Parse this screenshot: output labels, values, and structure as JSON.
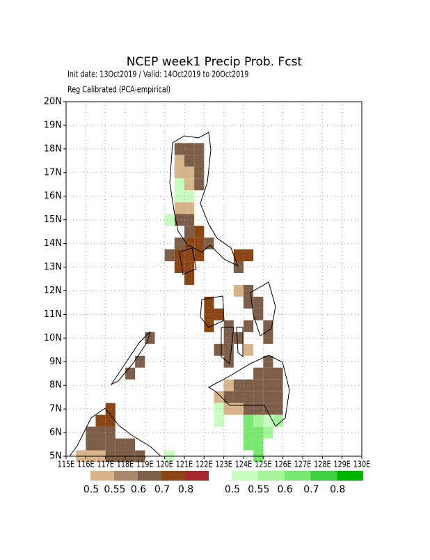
{
  "map": {
    "title": "NCEP week1 Precip Prob. Fcst",
    "subtitle": "Init date: 13Oct2019 / Valid: 14Oct2019 to 20Oct2019",
    "method": "Reg Calibrated (PCA-empirical)",
    "xlim": [
      115,
      130
    ],
    "ylim": [
      5,
      20
    ],
    "xticks": [
      {
        "value": 115,
        "label": "115E"
      },
      {
        "value": 116,
        "label": "116E"
      },
      {
        "value": 117,
        "label": "117E"
      },
      {
        "value": 118,
        "label": "118E"
      },
      {
        "value": 119,
        "label": "119E"
      },
      {
        "value": 120,
        "label": "120E"
      },
      {
        "value": 121,
        "label": "121E"
      },
      {
        "value": 122,
        "label": "122E"
      },
      {
        "value": 123,
        "label": "123E"
      },
      {
        "value": 124,
        "label": "124E"
      },
      {
        "value": 125,
        "label": "125E"
      },
      {
        "value": 126,
        "label": "126E"
      },
      {
        "value": 127,
        "label": "127E"
      },
      {
        "value": 128,
        "label": "128E"
      },
      {
        "value": 129,
        "label": "129E"
      },
      {
        "value": 130,
        "label": "130E"
      }
    ],
    "yticks": [
      {
        "value": 5,
        "label": "5N"
      },
      {
        "value": 6,
        "label": "6N"
      },
      {
        "value": 7,
        "label": "7N"
      },
      {
        "value": 8,
        "label": "8N"
      },
      {
        "value": 9,
        "label": "9N"
      },
      {
        "value": 10,
        "label": "10N"
      },
      {
        "value": 11,
        "label": "11N"
      },
      {
        "value": 12,
        "label": "12N"
      },
      {
        "value": 13,
        "label": "13N"
      },
      {
        "value": 14,
        "label": "14N"
      },
      {
        "value": 15,
        "label": "15N"
      },
      {
        "value": 16,
        "label": "16N"
      },
      {
        "value": 17,
        "label": "17N"
      },
      {
        "value": 18,
        "label": "18N"
      },
      {
        "value": 19,
        "label": "19N"
      },
      {
        "value": 20,
        "label": "20N"
      }
    ],
    "grid": true,
    "legend": {
      "below": {
        "labels": [
          0.5,
          0.55,
          0.6,
          0.7,
          0.8
        ],
        "colors": [
          "#d7b48a",
          "#a8876c",
          "#7d5e48",
          "#8a4614",
          "#a3292b"
        ]
      },
      "above": {
        "labels": [
          0.5,
          0.55,
          0.6,
          0.7,
          0.8
        ],
        "colors": [
          "#c8ffc0",
          "#a4f59a",
          "#78e870",
          "#40d040",
          "#00b400"
        ]
      }
    },
    "below_cells": [
      [
        120.75,
        18.0,
        0.65
      ],
      [
        121.25,
        18.0,
        0.65
      ],
      [
        121.75,
        18.0,
        0.65
      ],
      [
        120.75,
        17.5,
        0.52
      ],
      [
        121.25,
        17.5,
        0.65
      ],
      [
        121.75,
        17.5,
        0.65
      ],
      [
        120.75,
        17.0,
        0.52
      ],
      [
        121.25,
        17.0,
        0.52
      ],
      [
        121.75,
        17.0,
        0.65
      ],
      [
        121.25,
        16.5,
        0.52
      ],
      [
        121.75,
        16.5,
        0.65
      ],
      [
        120.75,
        15.5,
        0.52
      ],
      [
        121.25,
        15.5,
        0.52
      ],
      [
        120.75,
        15.0,
        0.65
      ],
      [
        121.25,
        15.0,
        0.65
      ],
      [
        121.25,
        14.5,
        0.65
      ],
      [
        121.75,
        14.5,
        0.75
      ],
      [
        120.75,
        14.0,
        0.65
      ],
      [
        121.25,
        14.0,
        0.75
      ],
      [
        121.75,
        14.0,
        0.75
      ],
      [
        122.25,
        14.0,
        0.65
      ],
      [
        120.25,
        13.5,
        0.65
      ],
      [
        120.75,
        13.5,
        0.75
      ],
      [
        121.25,
        13.5,
        0.75
      ],
      [
        121.75,
        13.5,
        0.75
      ],
      [
        120.75,
        13.0,
        0.75
      ],
      [
        121.25,
        13.0,
        0.75
      ],
      [
        121.25,
        12.5,
        0.75
      ],
      [
        123.75,
        13.5,
        0.75
      ],
      [
        124.25,
        13.5,
        0.75
      ],
      [
        123.75,
        13.0,
        0.65
      ],
      [
        123.75,
        12.0,
        0.52
      ],
      [
        124.25,
        12.0,
        0.65
      ],
      [
        124.25,
        11.5,
        0.65
      ],
      [
        124.75,
        11.5,
        0.65
      ],
      [
        122.25,
        11.5,
        0.75
      ],
      [
        122.25,
        11.0,
        0.75
      ],
      [
        122.75,
        11.0,
        0.75
      ],
      [
        122.25,
        10.5,
        0.75
      ],
      [
        123.25,
        10.5,
        0.65
      ],
      [
        123.25,
        10.0,
        0.65
      ],
      [
        123.75,
        10.0,
        0.65
      ],
      [
        124.25,
        10.5,
        0.65
      ],
      [
        122.75,
        9.5,
        0.65
      ],
      [
        123.25,
        9.5,
        0.65
      ],
      [
        124.25,
        9.5,
        0.52
      ],
      [
        123.25,
        9.0,
        0.65
      ],
      [
        124.75,
        11.0,
        0.65
      ],
      [
        125.25,
        10.5,
        0.65
      ],
      [
        125.25,
        10.0,
        0.65
      ],
      [
        125.25,
        9.0,
        0.65
      ],
      [
        124.75,
        8.5,
        0.65
      ],
      [
        125.25,
        8.5,
        0.65
      ],
      [
        125.75,
        8.5,
        0.65
      ],
      [
        123.25,
        8.0,
        0.52
      ],
      [
        123.75,
        8.0,
        0.65
      ],
      [
        124.25,
        8.0,
        0.65
      ],
      [
        124.75,
        8.0,
        0.65
      ],
      [
        125.25,
        8.0,
        0.65
      ],
      [
        125.75,
        8.0,
        0.65
      ],
      [
        122.75,
        7.5,
        0.52
      ],
      [
        123.25,
        7.5,
        0.65
      ],
      [
        123.75,
        7.5,
        0.65
      ],
      [
        124.25,
        7.5,
        0.65
      ],
      [
        124.75,
        7.5,
        0.65
      ],
      [
        125.25,
        7.5,
        0.65
      ],
      [
        125.75,
        7.5,
        0.65
      ],
      [
        123.25,
        7.0,
        0.52
      ],
      [
        123.75,
        7.0,
        0.52
      ],
      [
        124.25,
        7.0,
        0.65
      ],
      [
        124.75,
        7.0,
        0.65
      ],
      [
        125.25,
        7.0,
        0.65
      ],
      [
        125.75,
        7.0,
        0.65
      ],
      [
        119.25,
        10.0,
        0.65
      ],
      [
        118.75,
        9.0,
        0.65
      ],
      [
        118.25,
        8.5,
        0.65
      ],
      [
        117.25,
        7.0,
        0.75
      ],
      [
        117.25,
        6.5,
        0.75
      ],
      [
        116.75,
        6.5,
        0.75
      ],
      [
        116.25,
        6.0,
        0.65
      ],
      [
        116.75,
        6.0,
        0.65
      ],
      [
        117.25,
        6.0,
        0.65
      ],
      [
        116.25,
        5.5,
        0.65
      ],
      [
        116.75,
        5.5,
        0.65
      ],
      [
        117.25,
        5.5,
        0.65
      ],
      [
        117.75,
        5.5,
        0.65
      ],
      [
        118.25,
        5.5,
        0.65
      ],
      [
        115.75,
        5.0,
        0.52
      ],
      [
        116.25,
        5.0,
        0.52
      ],
      [
        116.75,
        5.0,
        0.52
      ],
      [
        117.25,
        5.0,
        0.65
      ],
      [
        117.75,
        5.0,
        0.65
      ],
      [
        118.25,
        5.0,
        0.65
      ],
      [
        118.75,
        5.0,
        0.65
      ]
    ],
    "above_cells": [
      [
        120.75,
        16.5,
        0.52
      ],
      [
        120.75,
        16.0,
        0.52
      ],
      [
        121.25,
        16.0,
        0.52
      ],
      [
        120.25,
        15.0,
        0.52
      ],
      [
        122.75,
        7.0,
        0.52
      ],
      [
        122.75,
        6.5,
        0.52
      ],
      [
        124.25,
        6.5,
        0.65
      ],
      [
        124.75,
        6.5,
        0.57
      ],
      [
        125.25,
        6.5,
        0.52
      ],
      [
        125.75,
        6.5,
        0.57
      ],
      [
        124.25,
        6.0,
        0.65
      ],
      [
        124.75,
        6.0,
        0.65
      ],
      [
        125.25,
        6.0,
        0.57
      ],
      [
        124.25,
        5.5,
        0.65
      ],
      [
        124.75,
        5.5,
        0.65
      ],
      [
        124.75,
        5.0,
        0.65
      ],
      [
        120.25,
        5.0,
        0.52
      ]
    ]
  }
}
